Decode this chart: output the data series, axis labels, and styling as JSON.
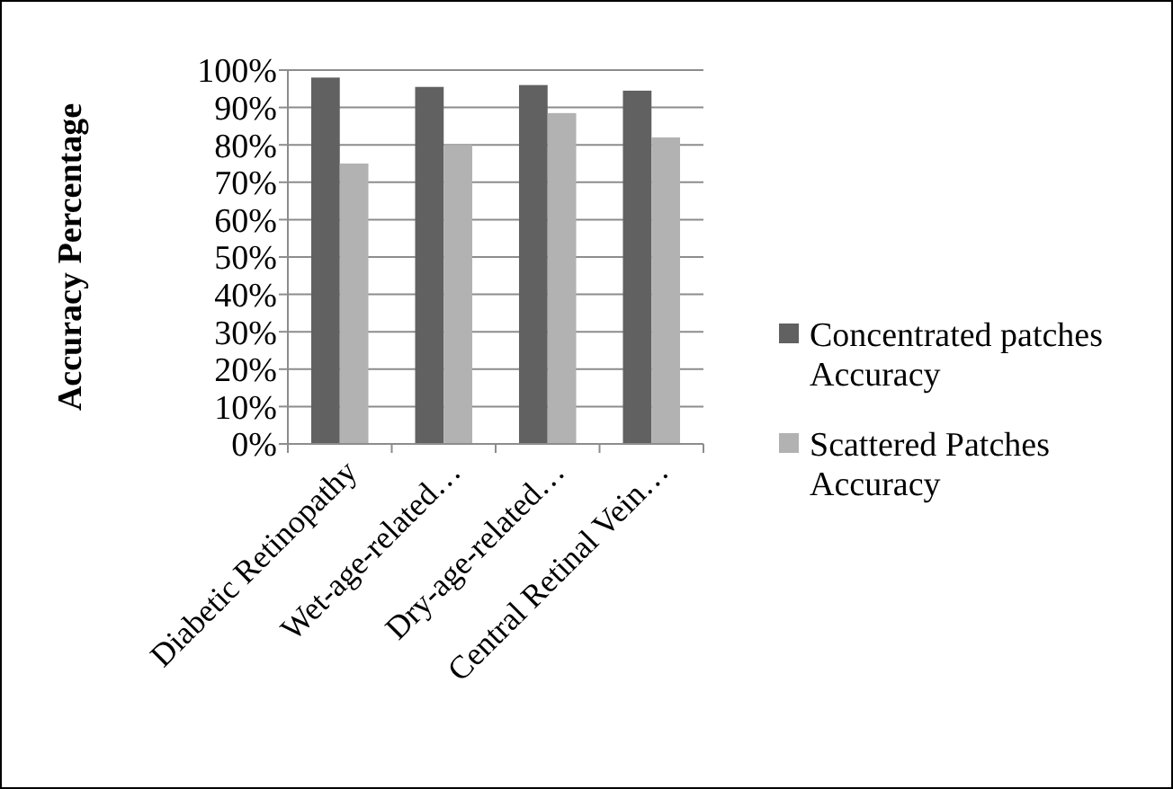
{
  "chart_data": {
    "type": "bar",
    "ylabel": "Accuracy Percentage",
    "categories": [
      "Diabetic Retinopathy",
      "Wet-age-related…",
      "Dry-age-related…",
      "Central Retinal Vein…"
    ],
    "series": [
      {
        "name": "Concentrated patches Accuracy",
        "color": "#616161",
        "values": [
          98,
          95.5,
          96,
          94.5
        ]
      },
      {
        "name": "Scattered Patches Accuracy",
        "color": "#b2b2b2",
        "values": [
          75,
          80,
          88.5,
          82
        ]
      }
    ],
    "ylim": [
      0,
      100
    ],
    "yticks": [
      {
        "value": 0,
        "label": "0%"
      },
      {
        "value": 10,
        "label": "10%"
      },
      {
        "value": 20,
        "label": "20%"
      },
      {
        "value": 30,
        "label": "30%"
      },
      {
        "value": 40,
        "label": "40%"
      },
      {
        "value": 50,
        "label": "50%"
      },
      {
        "value": 60,
        "label": "60%"
      },
      {
        "value": 70,
        "label": "70%"
      },
      {
        "value": 80,
        "label": "80%"
      },
      {
        "value": 90,
        "label": "90%"
      },
      {
        "value": 100,
        "label": "100%"
      }
    ],
    "grid": "y",
    "legend": "right"
  }
}
